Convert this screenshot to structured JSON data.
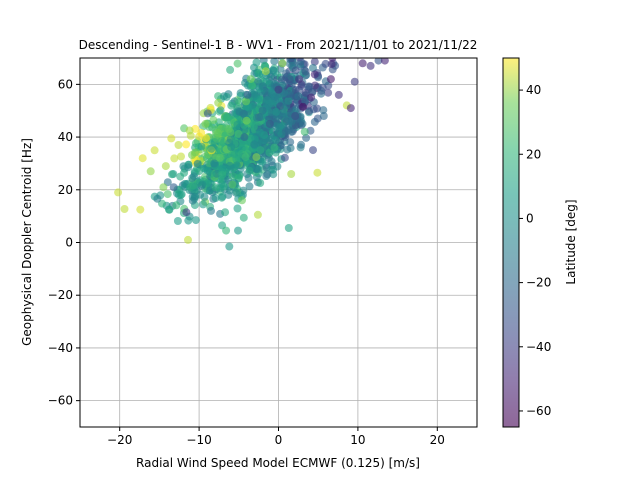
{
  "chart_data": {
    "type": "scatter",
    "title": "Descending - Sentinel-1 B - WV1 - From 2021/11/01 to 2021/11/22",
    "xlabel": "Radial Wind Speed Model ECMWF (0.125) [m/s]",
    "ylabel": "Geophysical Doppler Centroid [Hz]",
    "xlim": [
      -25,
      25
    ],
    "ylim": [
      -70,
      70
    ],
    "xticks": [
      -20,
      -10,
      0,
      10,
      20
    ],
    "yticks": [
      -60,
      -40,
      -20,
      0,
      20,
      40,
      60
    ],
    "grid": true,
    "marker_alpha": 0.6,
    "colorbar": {
      "label": "Latitude [deg]",
      "colormap": "viridis",
      "range": [
        -65,
        50
      ],
      "ticks": [
        -60,
        -40,
        -20,
        0,
        20,
        40
      ]
    },
    "points_description_note": "",
    "series": [
      {
        "points": [
          {
            "x": -20.2,
            "y": 19,
            "c": 45
          },
          {
            "x": -19.4,
            "y": 12.7,
            "c": 44
          },
          {
            "x": -17.4,
            "y": 12.5,
            "c": 46
          },
          {
            "x": -17.1,
            "y": 32,
            "c": 47
          },
          {
            "x": -16.1,
            "y": 27,
            "c": 40
          },
          {
            "x": -15.6,
            "y": 35,
            "c": 45
          },
          {
            "x": -14.5,
            "y": 21,
            "c": 38
          },
          {
            "x": -14.2,
            "y": 29,
            "c": 42
          },
          {
            "x": -13.5,
            "y": 39.5,
            "c": 46
          },
          {
            "x": -13.2,
            "y": 21,
            "c": -25
          },
          {
            "x": -12.6,
            "y": 37,
            "c": 44
          },
          {
            "x": -12.3,
            "y": 18,
            "c": 10
          },
          {
            "x": -11.6,
            "y": 11.5,
            "c": -40
          },
          {
            "x": -11.4,
            "y": 1,
            "c": 44
          },
          {
            "x": -11.2,
            "y": 42.5,
            "c": 42
          },
          {
            "x": -10.4,
            "y": 8.5,
            "c": 5
          },
          {
            "x": -9.6,
            "y": 22,
            "c": 0
          },
          {
            "x": -9.2,
            "y": 45,
            "c": 38
          },
          {
            "x": -8.9,
            "y": 49,
            "c": -30
          },
          {
            "x": -8.5,
            "y": 12,
            "c": -10
          },
          {
            "x": -8.1,
            "y": 30,
            "c": -5
          },
          {
            "x": -7.6,
            "y": 53,
            "c": 40
          },
          {
            "x": -7.1,
            "y": 6.5,
            "c": 10
          },
          {
            "x": -6.6,
            "y": 4.5,
            "c": 20
          },
          {
            "x": -6.2,
            "y": -1.5,
            "c": 5
          },
          {
            "x": -6.1,
            "y": 65.5,
            "c": 15
          },
          {
            "x": -5.8,
            "y": 22,
            "c": 30
          },
          {
            "x": -5.1,
            "y": 4.5,
            "c": 5
          },
          {
            "x": -4.6,
            "y": 16,
            "c": 35
          },
          {
            "x": -4.3,
            "y": 40,
            "c": -20
          },
          {
            "x": -3.9,
            "y": 56,
            "c": -25
          },
          {
            "x": -3.5,
            "y": 62,
            "c": 35
          },
          {
            "x": -2.6,
            "y": 10.5,
            "c": 43
          },
          {
            "x": -2.0,
            "y": 50,
            "c": -15
          },
          {
            "x": -1.6,
            "y": 65,
            "c": 42
          },
          {
            "x": -1.1,
            "y": 45,
            "c": -30
          },
          {
            "x": -0.5,
            "y": 36,
            "c": 20
          },
          {
            "x": 0.0,
            "y": 58,
            "c": -40
          },
          {
            "x": 0.5,
            "y": 68,
            "c": 40
          },
          {
            "x": 1.3,
            "y": 5.5,
            "c": 10
          },
          {
            "x": 1.6,
            "y": 26,
            "c": 42
          },
          {
            "x": 2.1,
            "y": 48,
            "c": -35
          },
          {
            "x": 2.6,
            "y": 62,
            "c": -45
          },
          {
            "x": 3.3,
            "y": 42,
            "c": 25
          },
          {
            "x": 4.1,
            "y": 55,
            "c": -50
          },
          {
            "x": 4.9,
            "y": 26.5,
            "c": 45
          },
          {
            "x": 5.7,
            "y": 48,
            "c": -20
          },
          {
            "x": 6.6,
            "y": 62,
            "c": -55
          },
          {
            "x": 7.6,
            "y": 56,
            "c": -45
          },
          {
            "x": 8.6,
            "y": 52,
            "c": 44
          },
          {
            "x": 9.1,
            "y": 51,
            "c": -50
          },
          {
            "x": 9.6,
            "y": 61,
            "c": -40
          },
          {
            "x": 10.6,
            "y": 68,
            "c": -52
          },
          {
            "x": 11.6,
            "y": 67,
            "c": -45
          },
          {
            "x": 12.6,
            "y": 69,
            "c": -30
          },
          {
            "x": 13.4,
            "y": 69,
            "c": -50
          }
        ]
      }
    ],
    "cluster": {
      "count": 1400,
      "seed": 7,
      "x_mean": -3.5,
      "x_sd": 4.0,
      "slope": 2.3,
      "intercept": 50,
      "residual_sd": 9.0
    }
  }
}
